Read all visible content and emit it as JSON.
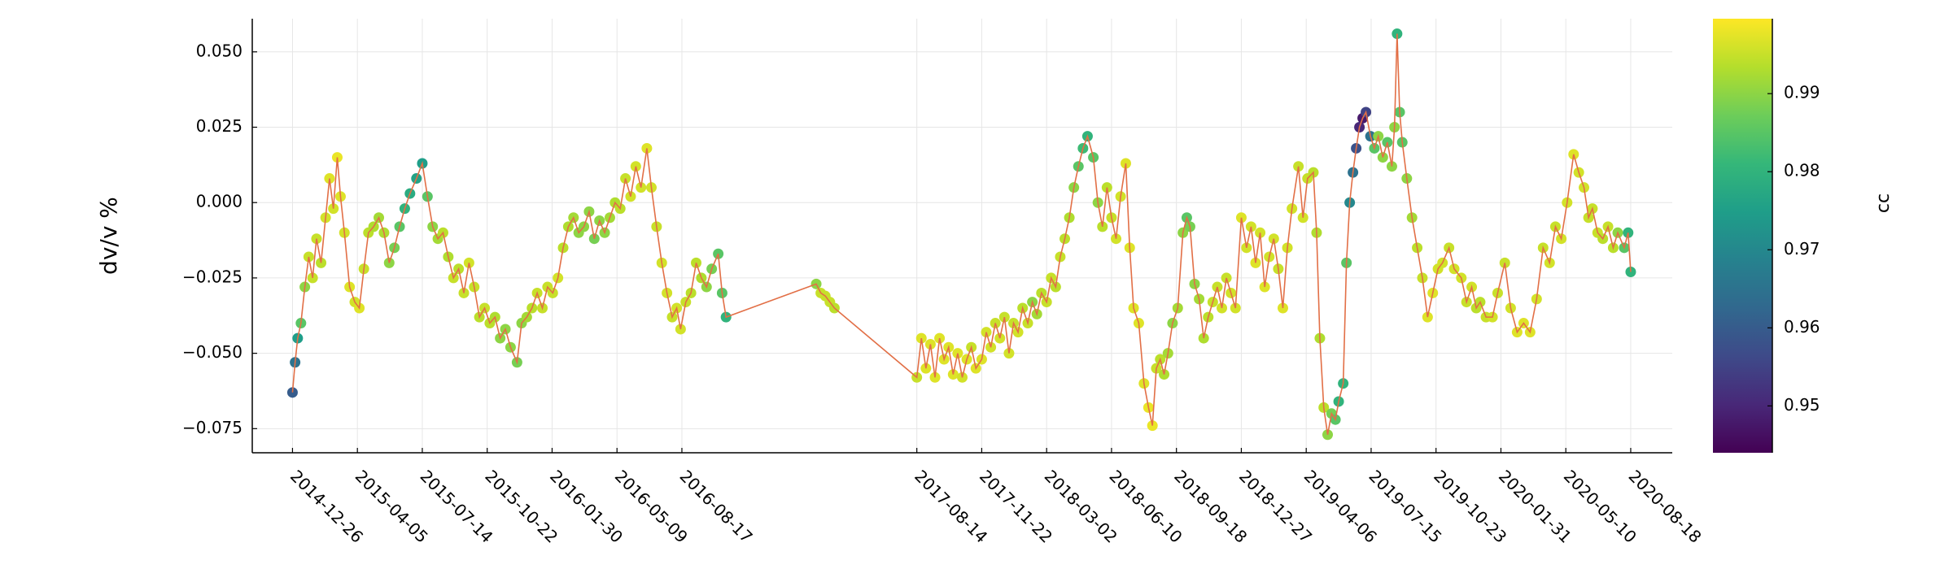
{
  "chart_data": {
    "type": "scatter",
    "y_label": "dv/v %",
    "xlim": [
      "2014-10-25",
      "2020-10-21"
    ],
    "xticks": [
      "2014-12-26",
      "2015-04-05",
      "2015-07-14",
      "2015-10-22",
      "2016-01-30",
      "2016-05-09",
      "2016-08-17",
      "2017-08-14",
      "2017-11-22",
      "2018-03-02",
      "2018-06-10",
      "2018-09-18",
      "2018-12-27",
      "2019-04-06",
      "2019-07-15",
      "2019-10-23",
      "2020-01-31",
      "2020-05-10",
      "2020-08-18"
    ],
    "ylim": [
      -0.083,
      0.061
    ],
    "yticks": [
      {
        "value": 0.05,
        "label": "0.050"
      },
      {
        "value": 0.025,
        "label": "0.025"
      },
      {
        "value": 0,
        "label": "0.000"
      },
      {
        "value": -0.025,
        "label": "−0.025"
      },
      {
        "value": -0.05,
        "label": "−0.050"
      },
      {
        "value": -0.075,
        "label": "−0.075"
      }
    ],
    "grid": true,
    "colorbar": {
      "label": "cc",
      "colormap": "viridis",
      "clim": [
        0.944,
        0.9996
      ],
      "ticks": [
        0.95,
        0.96,
        0.97,
        0.98,
        0.99
      ]
    },
    "series": [
      {
        "line_color": "#e26f46",
        "x": [
          "2014-12-26",
          "2014-12-30",
          "2015-01-03",
          "2015-01-08",
          "2015-01-14",
          "2015-01-20",
          "2015-01-26",
          "2015-02-01",
          "2015-02-08",
          "2015-02-15",
          "2015-02-21",
          "2015-02-27",
          "2015-03-05",
          "2015-03-10",
          "2015-03-16",
          "2015-03-24",
          "2015-04-01",
          "2015-04-08",
          "2015-04-15",
          "2015-04-22",
          "2015-04-30",
          "2015-05-08",
          "2015-05-16",
          "2015-05-24",
          "2015-06-01",
          "2015-06-09",
          "2015-06-17",
          "2015-06-25",
          "2015-07-05",
          "2015-07-14",
          "2015-07-22",
          "2015-07-30",
          "2015-08-07",
          "2015-08-15",
          "2015-08-23",
          "2015-08-31",
          "2015-09-08",
          "2015-09-16",
          "2015-09-24",
          "2015-10-02",
          "2015-10-10",
          "2015-10-18",
          "2015-10-26",
          "2015-11-03",
          "2015-11-11",
          "2015-11-19",
          "2015-11-27",
          "2015-12-07",
          "2015-12-14",
          "2015-12-22",
          "2015-12-30",
          "2016-01-07",
          "2016-01-15",
          "2016-01-23",
          "2016-01-31",
          "2016-02-08",
          "2016-02-16",
          "2016-02-24",
          "2016-03-03",
          "2016-03-11",
          "2016-03-19",
          "2016-03-27",
          "2016-04-04",
          "2016-04-12",
          "2016-04-20",
          "2016-04-28",
          "2016-05-06",
          "2016-05-14",
          "2016-05-22",
          "2016-05-30",
          "2016-06-07",
          "2016-06-15",
          "2016-06-24",
          "2016-07-01",
          "2016-07-09",
          "2016-07-17",
          "2016-07-25",
          "2016-08-02",
          "2016-08-09",
          "2016-08-15",
          "2016-08-23",
          "2016-08-31",
          "2016-09-08",
          "2016-09-16",
          "2016-09-24",
          "2016-10-02",
          "2016-10-12",
          "2016-10-18",
          "2016-10-24",
          "2017-03-12",
          "2017-03-19",
          "2017-03-26",
          "2017-04-02",
          "2017-04-09",
          "2017-08-14",
          "2017-08-21",
          "2017-08-28",
          "2017-09-04",
          "2017-09-11",
          "2017-09-18",
          "2017-09-25",
          "2017-10-02",
          "2017-10-09",
          "2017-10-16",
          "2017-10-23",
          "2017-10-30",
          "2017-11-06",
          "2017-11-13",
          "2017-11-22",
          "2017-11-29",
          "2017-12-06",
          "2017-12-13",
          "2017-12-20",
          "2017-12-27",
          "2018-01-03",
          "2018-01-10",
          "2018-01-17",
          "2018-01-24",
          "2018-02-01",
          "2018-02-08",
          "2018-02-15",
          "2018-02-22",
          "2018-03-02",
          "2018-03-09",
          "2018-03-16",
          "2018-03-23",
          "2018-03-30",
          "2018-04-06",
          "2018-04-13",
          "2018-04-20",
          "2018-04-27",
          "2018-05-04",
          "2018-05-13",
          "2018-05-20",
          "2018-05-27",
          "2018-06-03",
          "2018-06-10",
          "2018-06-17",
          "2018-06-24",
          "2018-07-02",
          "2018-07-08",
          "2018-07-14",
          "2018-07-22",
          "2018-07-30",
          "2018-08-06",
          "2018-08-12",
          "2018-08-18",
          "2018-08-24",
          "2018-08-30",
          "2018-09-05",
          "2018-09-12",
          "2018-09-20",
          "2018-09-28",
          "2018-10-04",
          "2018-10-09",
          "2018-10-16",
          "2018-10-23",
          "2018-10-30",
          "2018-11-06",
          "2018-11-13",
          "2018-11-20",
          "2018-11-27",
          "2018-12-04",
          "2018-12-11",
          "2018-12-18",
          "2018-12-27",
          "2019-01-04",
          "2019-01-11",
          "2019-01-18",
          "2019-01-25",
          "2019-02-01",
          "2019-02-08",
          "2019-02-15",
          "2019-02-22",
          "2019-03-01",
          "2019-03-08",
          "2019-03-15",
          "2019-03-25",
          "2019-04-01",
          "2019-04-08",
          "2019-04-17",
          "2019-04-22",
          "2019-04-27",
          "2019-05-03",
          "2019-05-09",
          "2019-05-15",
          "2019-05-21",
          "2019-05-26",
          "2019-06-02",
          "2019-06-07",
          "2019-06-12",
          "2019-06-17",
          "2019-06-22",
          "2019-06-27",
          "2019-07-02",
          "2019-07-07",
          "2019-07-14",
          "2019-07-20",
          "2019-07-26",
          "2019-08-02",
          "2019-08-09",
          "2019-08-16",
          "2019-08-20",
          "2019-08-24",
          "2019-08-28",
          "2019-09-01",
          "2019-09-08",
          "2019-09-16",
          "2019-09-24",
          "2019-10-02",
          "2019-10-10",
          "2019-10-18",
          "2019-10-26",
          "2019-11-02",
          "2019-11-12",
          "2019-11-20",
          "2019-12-01",
          "2019-12-09",
          "2019-12-17",
          "2019-12-24",
          "2019-12-30",
          "2020-01-08",
          "2020-01-18",
          "2020-01-26",
          "2020-02-06",
          "2020-02-15",
          "2020-02-25",
          "2020-03-06",
          "2020-03-16",
          "2020-03-26",
          "2020-04-05",
          "2020-04-15",
          "2020-04-24",
          "2020-05-03",
          "2020-05-12",
          "2020-05-22",
          "2020-05-30",
          "2020-06-07",
          "2020-06-14",
          "2020-06-20",
          "2020-06-28",
          "2020-07-06",
          "2020-07-14",
          "2020-07-22",
          "2020-07-29",
          "2020-08-08",
          "2020-08-14",
          "2020-08-18"
        ],
        "values": [
          -0.063,
          -0.053,
          -0.045,
          -0.04,
          -0.028,
          -0.018,
          -0.025,
          -0.012,
          -0.02,
          -0.005,
          0.008,
          -0.002,
          0.015,
          0.002,
          -0.01,
          -0.028,
          -0.033,
          -0.035,
          -0.022,
          -0.01,
          -0.008,
          -0.005,
          -0.01,
          -0.02,
          -0.015,
          -0.008,
          -0.002,
          0.003,
          0.008,
          0.013,
          0.002,
          -0.008,
          -0.012,
          -0.01,
          -0.018,
          -0.025,
          -0.022,
          -0.03,
          -0.02,
          -0.028,
          -0.038,
          -0.035,
          -0.04,
          -0.038,
          -0.045,
          -0.042,
          -0.048,
          -0.053,
          -0.04,
          -0.038,
          -0.035,
          -0.03,
          -0.035,
          -0.028,
          -0.03,
          -0.025,
          -0.015,
          -0.008,
          -0.005,
          -0.01,
          -0.008,
          -0.003,
          -0.012,
          -0.006,
          -0.01,
          -0.005,
          0.0,
          -0.002,
          0.008,
          0.002,
          0.012,
          0.005,
          0.018,
          0.005,
          -0.008,
          -0.02,
          -0.03,
          -0.038,
          -0.035,
          -0.042,
          -0.033,
          -0.03,
          -0.02,
          -0.025,
          -0.028,
          -0.022,
          -0.017,
          -0.03,
          -0.038,
          -0.027,
          -0.03,
          -0.031,
          -0.033,
          -0.035,
          -0.058,
          -0.045,
          -0.055,
          -0.047,
          -0.058,
          -0.045,
          -0.052,
          -0.048,
          -0.057,
          -0.05,
          -0.058,
          -0.052,
          -0.048,
          -0.055,
          -0.052,
          -0.043,
          -0.048,
          -0.04,
          -0.045,
          -0.038,
          -0.05,
          -0.04,
          -0.043,
          -0.035,
          -0.04,
          -0.033,
          -0.037,
          -0.03,
          -0.033,
          -0.025,
          -0.028,
          -0.018,
          -0.012,
          -0.005,
          0.005,
          0.012,
          0.018,
          0.022,
          0.015,
          0.0,
          -0.008,
          0.005,
          -0.005,
          -0.012,
          0.002,
          0.013,
          -0.015,
          -0.035,
          -0.04,
          -0.06,
          -0.068,
          -0.074,
          -0.055,
          -0.052,
          -0.057,
          -0.05,
          -0.04,
          -0.035,
          -0.01,
          -0.005,
          -0.008,
          -0.027,
          -0.032,
          -0.045,
          -0.038,
          -0.033,
          -0.028,
          -0.035,
          -0.025,
          -0.03,
          -0.035,
          -0.005,
          -0.015,
          -0.008,
          -0.02,
          -0.01,
          -0.028,
          -0.018,
          -0.012,
          -0.022,
          -0.035,
          -0.015,
          -0.002,
          0.012,
          -0.005,
          0.008,
          0.01,
          -0.01,
          -0.045,
          -0.068,
          -0.077,
          -0.07,
          -0.072,
          -0.066,
          -0.06,
          -0.02,
          0.0,
          0.01,
          0.018,
          0.025,
          0.028,
          0.03,
          0.022,
          0.018,
          0.022,
          0.015,
          0.02,
          0.012,
          0.025,
          0.056,
          0.03,
          0.02,
          0.008,
          -0.005,
          -0.015,
          -0.025,
          -0.038,
          -0.03,
          -0.022,
          -0.02,
          -0.015,
          -0.022,
          -0.025,
          -0.033,
          -0.028,
          -0.035,
          -0.033,
          -0.038,
          -0.038,
          -0.03,
          -0.02,
          -0.035,
          -0.043,
          -0.04,
          -0.043,
          -0.032,
          -0.015,
          -0.02,
          -0.008,
          -0.012,
          0.0,
          0.016,
          0.01,
          0.005,
          -0.005,
          -0.002,
          -0.01,
          -0.012,
          -0.008,
          -0.015,
          -0.01,
          -0.015,
          -0.01,
          -0.023
        ],
        "cc": [
          0.96,
          0.965,
          0.975,
          0.985,
          0.99,
          0.995,
          0.995,
          0.995,
          0.994,
          0.996,
          0.997,
          0.996,
          0.998,
          0.997,
          0.996,
          0.997,
          0.996,
          0.997,
          0.995,
          0.994,
          0.993,
          0.992,
          0.993,
          0.99,
          0.988,
          0.985,
          0.98,
          0.978,
          0.976,
          0.975,
          0.985,
          0.99,
          0.992,
          0.994,
          0.993,
          0.995,
          0.994,
          0.995,
          0.996,
          0.995,
          0.994,
          0.995,
          0.994,
          0.993,
          0.99,
          0.99,
          0.99,
          0.988,
          0.99,
          0.992,
          0.994,
          0.995,
          0.995,
          0.995,
          0.995,
          0.996,
          0.994,
          0.993,
          0.992,
          0.99,
          0.99,
          0.99,
          0.988,
          0.99,
          0.99,
          0.992,
          0.993,
          0.994,
          0.995,
          0.996,
          0.996,
          0.996,
          0.997,
          0.996,
          0.995,
          0.996,
          0.996,
          0.995,
          0.996,
          0.996,
          0.995,
          0.994,
          0.994,
          0.993,
          0.99,
          0.988,
          0.985,
          0.985,
          0.98,
          0.99,
          0.995,
          0.995,
          0.995,
          0.994,
          0.995,
          0.997,
          0.997,
          0.997,
          0.997,
          0.997,
          0.997,
          0.997,
          0.997,
          0.997,
          0.996,
          0.997,
          0.995,
          0.997,
          0.997,
          0.996,
          0.996,
          0.995,
          0.996,
          0.995,
          0.996,
          0.995,
          0.996,
          0.994,
          0.995,
          0.99,
          0.992,
          0.994,
          0.995,
          0.995,
          0.994,
          0.995,
          0.994,
          0.993,
          0.99,
          0.985,
          0.982,
          0.98,
          0.985,
          0.99,
          0.994,
          0.994,
          0.995,
          0.996,
          0.996,
          0.997,
          0.997,
          0.997,
          0.997,
          0.997,
          0.998,
          0.998,
          0.995,
          0.994,
          0.993,
          0.992,
          0.99,
          0.992,
          0.99,
          0.985,
          0.988,
          0.99,
          0.992,
          0.993,
          0.994,
          0.995,
          0.995,
          0.996,
          0.995,
          0.996,
          0.996,
          0.997,
          0.996,
          0.996,
          0.997,
          0.996,
          0.997,
          0.996,
          0.996,
          0.995,
          0.997,
          0.996,
          0.996,
          0.995,
          0.996,
          0.995,
          0.994,
          0.993,
          0.993,
          0.994,
          0.99,
          0.988,
          0.985,
          0.98,
          0.98,
          0.985,
          0.97,
          0.965,
          0.958,
          0.95,
          0.948,
          0.955,
          0.965,
          0.985,
          0.99,
          0.99,
          0.985,
          0.99,
          0.99,
          0.98,
          0.985,
          0.985,
          0.99,
          0.992,
          0.994,
          0.995,
          0.997,
          0.997,
          0.996,
          0.996,
          0.995,
          0.996,
          0.996,
          0.995,
          0.996,
          0.994,
          0.994,
          0.995,
          0.996,
          0.995,
          0.995,
          0.996,
          0.997,
          0.997,
          0.997,
          0.996,
          0.995,
          0.996,
          0.995,
          0.996,
          0.996,
          0.997,
          0.996,
          0.996,
          0.995,
          0.995,
          0.995,
          0.994,
          0.995,
          0.994,
          0.99,
          0.985,
          0.98,
          0.98
        ]
      }
    ]
  }
}
